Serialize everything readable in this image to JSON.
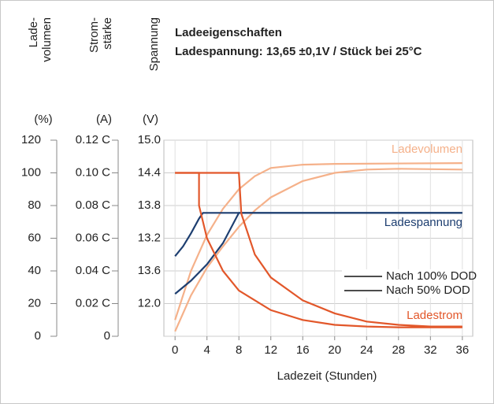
{
  "chart_data": {
    "type": "line",
    "title": "Ladeeigenschaften",
    "subtitle": "Ladespannung: 13,65 ±0,1V / Stück bei 25°C",
    "x_label": "Ladezeit (Stunden)",
    "y_axes": [
      {
        "label_lines": [
          "Lade-",
          "volumen"
        ],
        "unit": "(%)"
      },
      {
        "label_lines": [
          "Strom-",
          "stärke"
        ],
        "unit": "(A)"
      },
      {
        "label_lines": [
          "Spannung"
        ],
        "unit": "(V)"
      }
    ],
    "xlim": [
      -1.4,
      37.3
    ],
    "xticks": [
      0,
      4,
      8,
      12,
      16,
      20,
      24,
      28,
      32,
      36
    ],
    "ylim": [
      0,
      120
    ],
    "yticks": [
      0,
      20,
      40,
      60,
      80,
      100,
      120
    ],
    "y2lim": [
      0,
      0.12
    ],
    "y2ticks": [
      0,
      {
        "value": 0.02,
        "label": "0.02 C"
      },
      {
        "value": 0.04,
        "label": "0.04 C"
      },
      {
        "value": 0.06,
        "label": "0.06 C"
      },
      {
        "value": 0.08,
        "label": "0.08 C"
      },
      {
        "value": 0.1,
        "label": "0.10 C"
      },
      {
        "value": 0.12,
        "label": "0.12 C"
      }
    ],
    "y3ticks": [
      {
        "value": 12.0,
        "label": "12.0"
      },
      13.6,
      13.2,
      13.8,
      14.4,
      {
        "value": 15.0,
        "label": "15.0"
      }
    ],
    "grid": true,
    "curves": [
      {
        "name": "Ladevolumen",
        "color": "#f5b18a",
        "series": [
          {
            "name": "Nach 100% DOD",
            "x": [
              0,
              2,
              4,
              6,
              8,
              10,
              12,
              16,
              20,
              24,
              28,
              36
            ],
            "values": [
              3,
              25,
              42,
              55,
              67,
              77,
              85,
              95,
              100,
              102,
              102.5,
              102
            ]
          },
          {
            "name": "Nach 50% DOD",
            "x": [
              0,
              2,
              4,
              6,
              8,
              10,
              12,
              16,
              20,
              36
            ],
            "values": [
              10,
              40,
              62,
              78,
              90,
              98,
              103,
              105,
              105.5,
              106
            ]
          }
        ]
      },
      {
        "name": "Ladespannung",
        "color": "#1d3e70",
        "series": [
          {
            "name": "Nach 100% DOD",
            "x": [
              0,
              2,
              4,
              6,
              8,
              36
            ],
            "values": [
              26,
              34,
              44,
              57,
              75.5,
              75.5
            ]
          },
          {
            "name": "Nach 50% DOD",
            "x": [
              0,
              1,
              2,
              3,
              3.5,
              36
            ],
            "values": [
              49,
              55,
              63,
              72,
              75.5,
              75.5
            ]
          }
        ]
      },
      {
        "name": "Ladestrom",
        "color": "#e2572a",
        "series": [
          {
            "name": "Nach 100% DOD",
            "x": [
              0,
              8,
              8.3,
              10,
              12,
              16,
              20,
              24,
              28,
              32,
              36
            ],
            "values": [
              100,
              100,
              75,
              50,
              36,
              22,
              14,
              9,
              7,
              6,
              6
            ]
          },
          {
            "name": "Nach 50% DOD",
            "x": [
              0,
              3,
              3,
              4,
              6,
              8,
              12,
              16,
              20,
              24,
              28,
              36
            ],
            "values": [
              100,
              100,
              80,
              60,
              40,
              28,
              16,
              10,
              7,
              6,
              5.5,
              5.5
            ]
          }
        ]
      }
    ]
  }
}
